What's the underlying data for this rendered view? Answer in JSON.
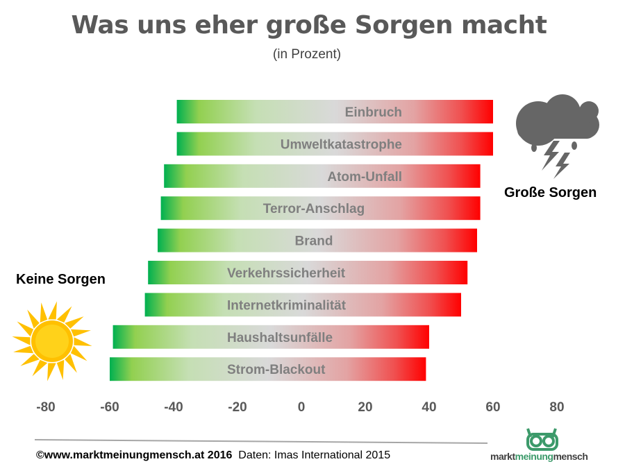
{
  "chart_data": {
    "type": "bar",
    "orientation": "horizontal-diverging",
    "title": "Was uns eher große Sorgen macht",
    "subtitle": "(in Prozent)",
    "categories": [
      "Einbruch",
      "Umweltkatastrophe",
      "Atom-Unfall",
      "Terror-Anschlag",
      "Brand",
      "Verkehrssicherheit",
      "Internetkriminalität",
      "Haushaltsunfälle",
      "Strom-Blackout"
    ],
    "series": [
      {
        "name": "Keine Sorgen",
        "values": [
          -39,
          -39,
          -43,
          -44,
          -45,
          -48,
          -49,
          -59,
          -60
        ]
      },
      {
        "name": "Große Sorgen",
        "values": [
          60,
          60,
          56,
          56,
          55,
          52,
          50,
          40,
          39
        ]
      }
    ],
    "xlim": [
      -80,
      80
    ],
    "xticks": [
      "-80",
      "-60",
      "-40",
      "-20",
      "0",
      "20",
      "40",
      "60",
      "80"
    ],
    "grid": false,
    "colors": {
      "negative_end": "#00b050",
      "mid1": "#92d050",
      "neutral": "#d9d9d9",
      "positive_end": "#ff0000"
    }
  },
  "labels": {
    "keine_sorgen": "Keine Sorgen",
    "grosse_sorgen": "Große Sorgen"
  },
  "footer": {
    "copyright": "©www.marktmeinungmensch.at 2016",
    "source": "Daten: Imas International 2015"
  },
  "logo": {
    "part1": "markt",
    "part2": "meinung",
    "part3": "mensch"
  }
}
